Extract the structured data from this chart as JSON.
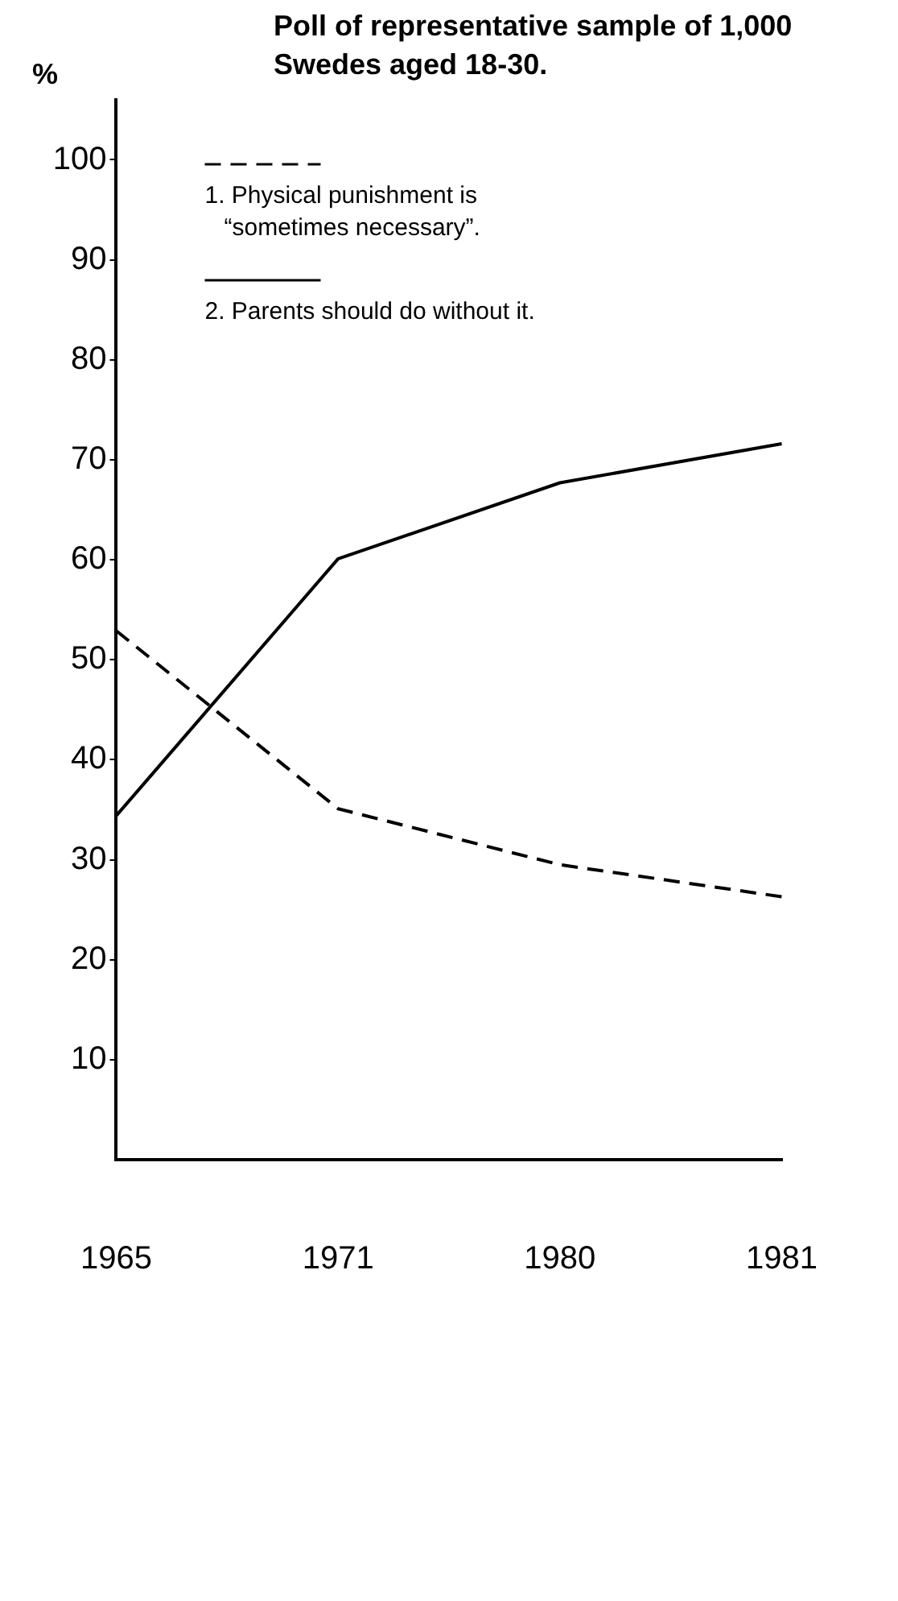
{
  "chart_data": {
    "type": "line",
    "title": "Poll of representative sample of 1,000 Swedes aged 18-30.",
    "ylabel": "%",
    "categories": [
      "1965",
      "1971",
      "1980",
      "1981"
    ],
    "series": [
      {
        "name": "1. Physical punishment is “sometimes necessary”.",
        "color": "#000000",
        "line_style": "dashed",
        "values": [
          52.9,
          35.1,
          29.5,
          26.3
        ]
      },
      {
        "name": "2. Parents should do without it.",
        "color": "#000000",
        "line_style": "solid",
        "values": [
          34.4,
          60.1,
          67.7,
          71.6
        ]
      }
    ],
    "ylim": [
      0,
      106
    ],
    "yticks": [
      10,
      20,
      30,
      40,
      50,
      60,
      70,
      80,
      90,
      100
    ],
    "grid": false,
    "legend": "top left",
    "marker": "none"
  }
}
